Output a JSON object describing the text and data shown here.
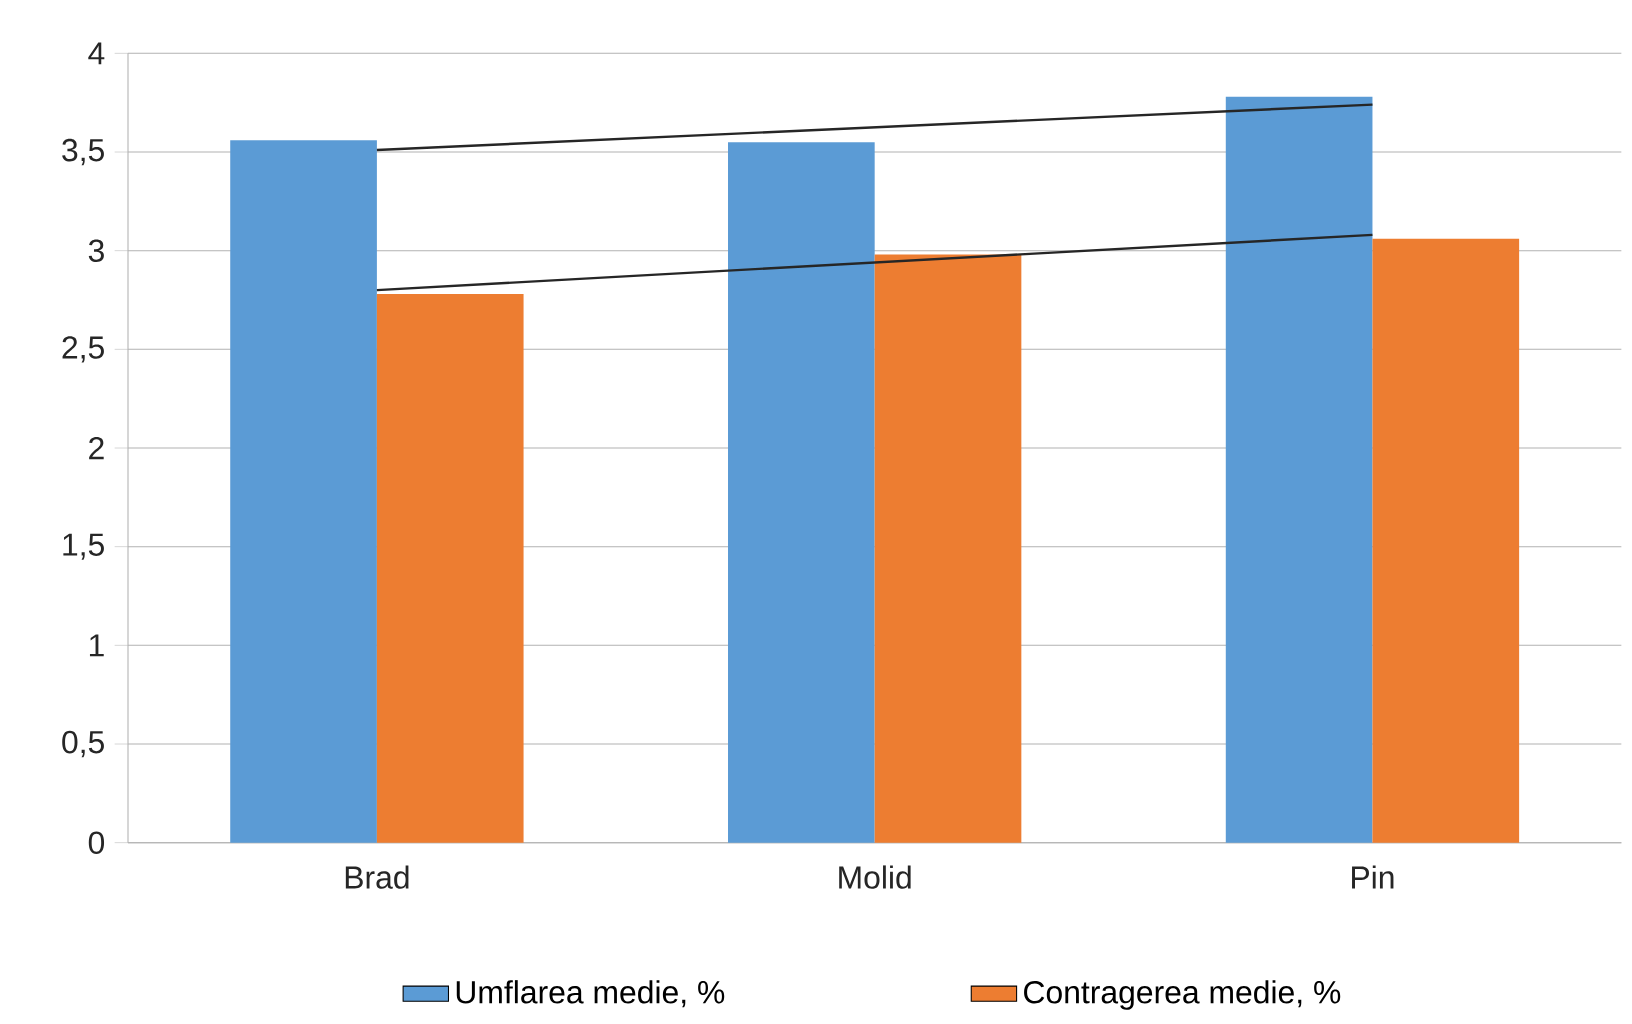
{
  "chart_data": {
    "type": "bar",
    "categories": [
      "Brad",
      "Molid",
      "Pin"
    ],
    "series": [
      {
        "name": "Umflarea medie, %",
        "color": "#5b9bd5",
        "values": [
          3.56,
          3.55,
          3.78
        ]
      },
      {
        "name": "Contragerea medie, %",
        "color": "#ed7d31",
        "values": [
          2.78,
          2.98,
          3.06
        ]
      },
      {
        "type": "line",
        "color": "#262626",
        "x": [
          "Brad",
          "Pin"
        ],
        "values": [
          3.51,
          3.74
        ]
      },
      {
        "type": "line",
        "color": "#262626",
        "x": [
          "Brad",
          "Pin"
        ],
        "values": [
          2.8,
          3.08
        ]
      }
    ],
    "ylim": [
      0,
      4
    ],
    "yticks": [
      0,
      {
        "value": 0.5,
        "label": "0,5"
      },
      1,
      {
        "value": 1.5,
        "label": "1,5"
      },
      2,
      {
        "value": 2.5,
        "label": "2,5"
      },
      3,
      {
        "value": 3.5,
        "label": "3,5"
      },
      4
    ],
    "grid": "y",
    "legend": "bottom"
  }
}
